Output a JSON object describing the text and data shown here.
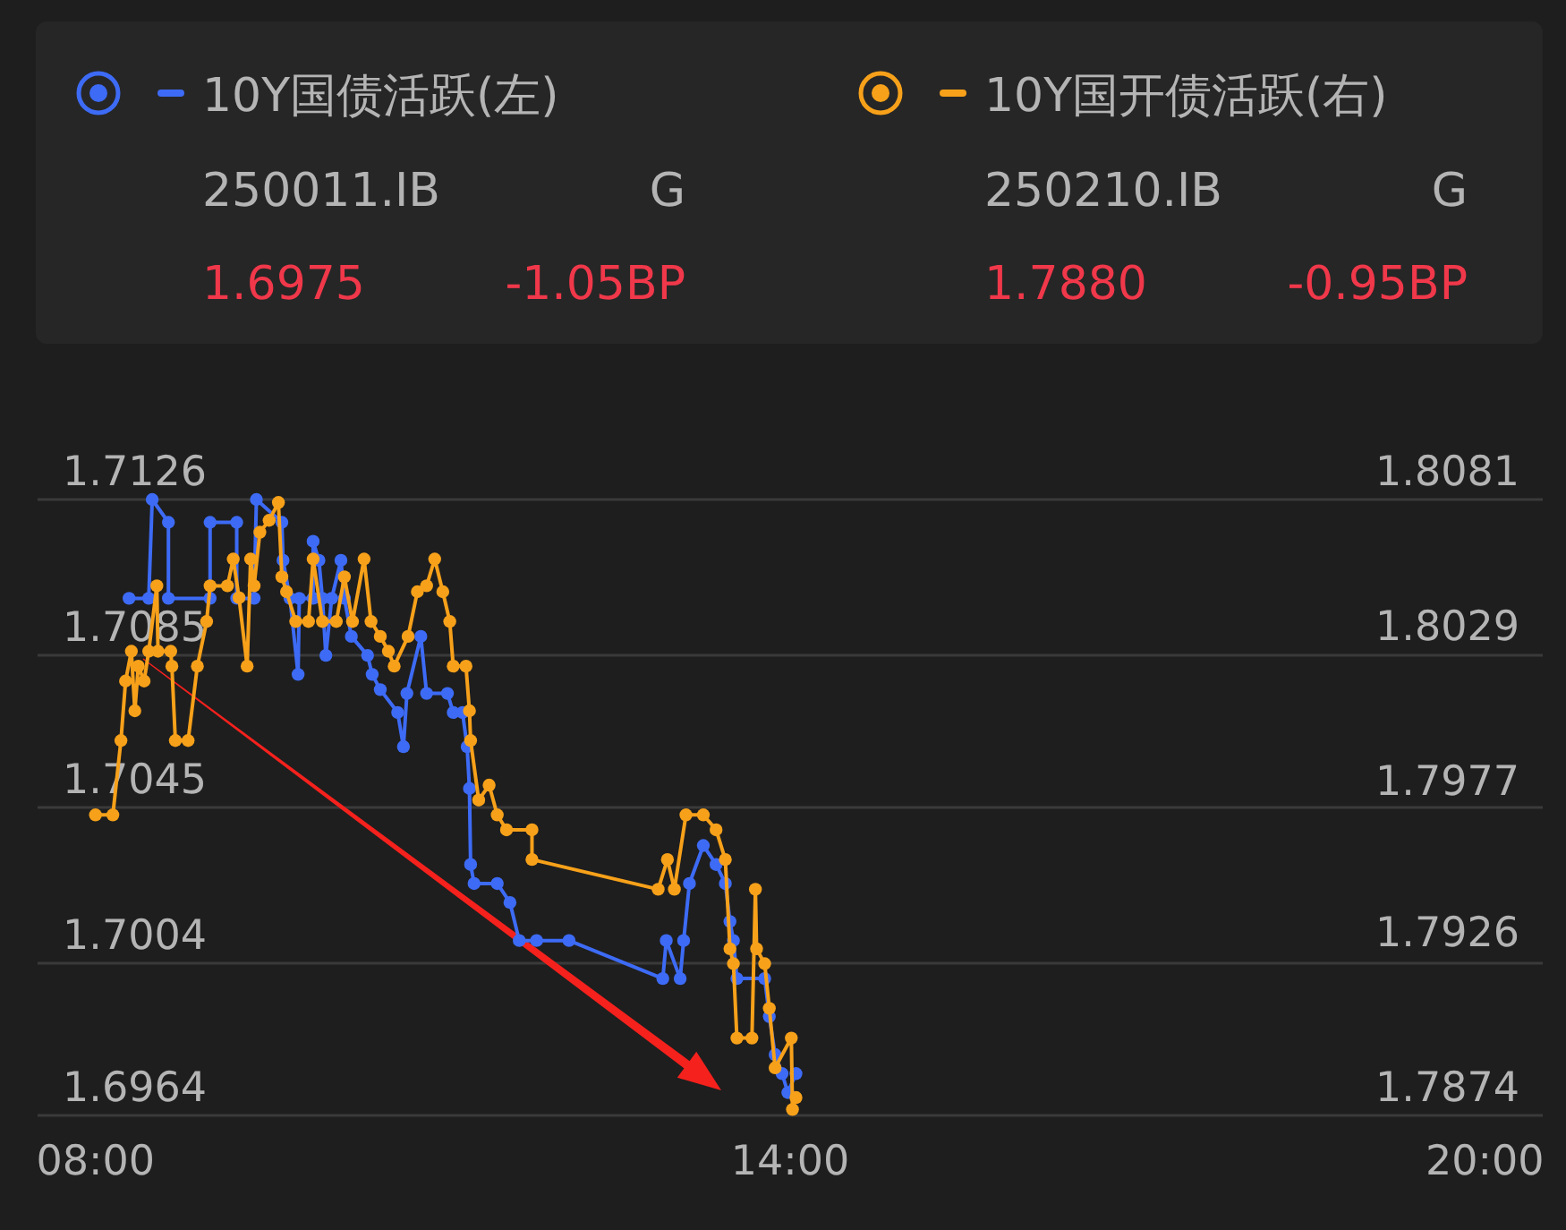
{
  "chart_data": {
    "type": "line",
    "marker": "circle",
    "line_style": "solid",
    "grid": "y",
    "legend": "top",
    "xlim": [
      7.5,
      20.5
    ],
    "xticks": [
      {
        "value": 8,
        "label": "08:00"
      },
      {
        "value": 14,
        "label": "14:00"
      },
      {
        "value": 20,
        "label": "20:00"
      }
    ],
    "ylim": [
      1.6964,
      1.7126
    ],
    "yticks": [
      1.6964,
      1.7004,
      1.7045,
      1.7085,
      1.7126
    ],
    "y2lim": [
      1.7874,
      1.8081
    ],
    "y2ticks": [
      1.7874,
      1.7926,
      1.7977,
      1.8029,
      1.8081
    ],
    "annotations": [
      "250011.IB",
      "G",
      "1.6975",
      "-1.05BP",
      "250210.IB",
      "G",
      "1.7880",
      "-0.95BP"
    ],
    "series": [
      {
        "name": "10Y国债活跃(左)",
        "color": "#3d6bf5",
        "x": [
          8.29,
          8.46,
          8.49,
          8.63,
          8.63,
          8.99,
          8.99,
          9.22,
          9.22,
          9.37,
          9.39,
          9.61,
          9.62,
          9.68,
          9.75,
          9.76,
          9.88,
          9.88,
          9.93,
          9.96,
          9.99,
          10.04,
          10.12,
          10.15,
          10.21,
          10.35,
          10.39,
          10.46,
          10.61,
          10.66,
          10.69,
          10.81,
          10.86,
          11.04,
          11.09,
          11.17,
          11.21,
          11.23,
          11.24,
          11.27,
          11.47,
          11.58,
          11.66,
          11.81,
          12.09,
          12.9,
          12.93,
          13.05,
          13.08,
          13.13,
          13.25,
          13.36,
          13.44,
          13.48,
          13.51,
          13.54,
          13.78,
          13.82,
          13.87,
          13.93,
          13.98,
          14.05
        ],
        "values": [
          1.71,
          1.71,
          1.7126,
          1.712,
          1.71,
          1.71,
          1.712,
          1.712,
          1.71,
          1.71,
          1.7126,
          1.712,
          1.711,
          1.71,
          1.708,
          1.71,
          1.71,
          1.7115,
          1.711,
          1.71,
          1.7085,
          1.71,
          1.711,
          1.71,
          1.709,
          1.7085,
          1.708,
          1.7076,
          1.707,
          1.7061,
          1.7075,
          1.709,
          1.7075,
          1.7075,
          1.707,
          1.707,
          1.7061,
          1.705,
          1.703,
          1.7025,
          1.7025,
          1.702,
          1.701,
          1.701,
          1.701,
          1.7,
          1.701,
          1.7,
          1.701,
          1.7025,
          1.7035,
          1.703,
          1.7025,
          1.7015,
          1.701,
          1.7,
          1.7,
          1.699,
          1.698,
          1.6975,
          1.697,
          1.6975
        ]
      },
      {
        "name": "10Y国开债活跃(右)",
        "color": "#f7a11a",
        "axis": "y2",
        "x": [
          8.0,
          8.15,
          8.22,
          8.26,
          8.31,
          8.34,
          8.37,
          8.42,
          8.46,
          8.53,
          8.54,
          8.65,
          8.66,
          8.69,
          8.8,
          8.88,
          8.96,
          8.99,
          9.14,
          9.19,
          9.24,
          9.31,
          9.34,
          9.37,
          9.42,
          9.5,
          9.58,
          9.61,
          9.65,
          9.73,
          9.84,
          9.88,
          9.96,
          10.08,
          10.15,
          10.22,
          10.32,
          10.38,
          10.46,
          10.53,
          10.58,
          10.7,
          10.78,
          10.86,
          10.93,
          11.0,
          11.06,
          11.09,
          11.2,
          11.23,
          11.24,
          11.31,
          11.4,
          11.47,
          11.55,
          11.77,
          11.77,
          12.86,
          12.94,
          13.0,
          13.1,
          13.25,
          13.36,
          13.44,
          13.48,
          13.51,
          13.54,
          13.67,
          13.7,
          13.71,
          13.78,
          13.82,
          13.87,
          14.01,
          14.02,
          14.05
        ],
        "values": [
          1.7975,
          1.7975,
          1.8,
          1.802,
          1.803,
          1.801,
          1.8025,
          1.802,
          1.803,
          1.8052,
          1.803,
          1.803,
          1.8025,
          1.8,
          1.8,
          1.8025,
          1.804,
          1.8052,
          1.8052,
          1.8061,
          1.8048,
          1.8025,
          1.8061,
          1.8052,
          1.807,
          1.8074,
          1.808,
          1.8055,
          1.805,
          1.804,
          1.804,
          1.8061,
          1.804,
          1.804,
          1.8055,
          1.804,
          1.8061,
          1.804,
          1.8035,
          1.803,
          1.8025,
          1.8035,
          1.805,
          1.8052,
          1.8061,
          1.805,
          1.804,
          1.8025,
          1.8025,
          1.801,
          1.8,
          1.798,
          1.7985,
          1.7975,
          1.797,
          1.797,
          1.796,
          1.795,
          1.796,
          1.795,
          1.7975,
          1.7975,
          1.797,
          1.796,
          1.793,
          1.7925,
          1.79,
          1.79,
          1.795,
          1.793,
          1.7925,
          1.791,
          1.789,
          1.79,
          1.7876,
          1.788
        ]
      }
    ]
  }
}
